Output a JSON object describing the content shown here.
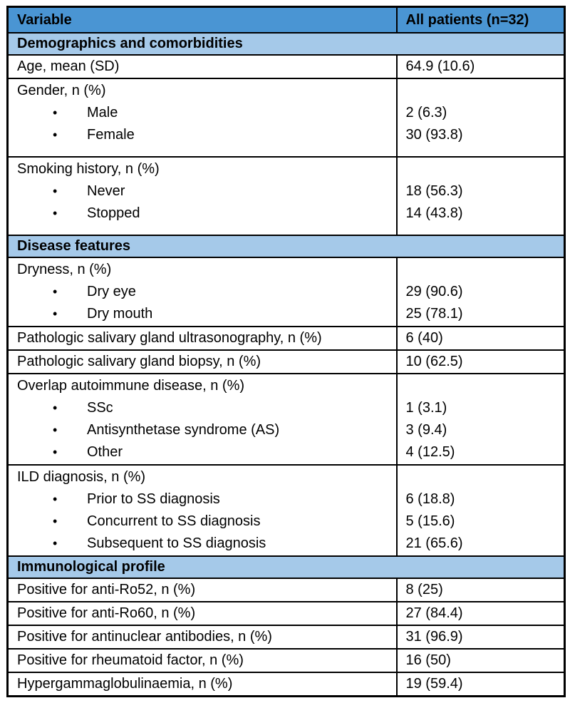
{
  "header": {
    "col1": "Variable",
    "col2": "All patients (n=32)"
  },
  "sections": [
    {
      "title": "Demographics and comorbidities",
      "rows": [
        {
          "label": "Age, mean (SD)",
          "value": "64.9 (10.6)"
        },
        {
          "label": "Gender, n (%)",
          "items": [
            {
              "label": "Male",
              "value": "2 (6.3)"
            },
            {
              "label": "Female",
              "value": "30 (93.8)"
            }
          ]
        },
        {
          "label": "Smoking history, n (%)",
          "items": [
            {
              "label": "Never",
              "value": "18 (56.3)"
            },
            {
              "label": "Stopped",
              "value": "14 (43.8)"
            }
          ]
        }
      ]
    },
    {
      "title": "Disease features",
      "rows": [
        {
          "label": "Dryness, n (%)",
          "items": [
            {
              "label": "Dry eye",
              "value": "29 (90.6)"
            },
            {
              "label": "Dry mouth",
              "value": "25 (78.1)"
            }
          ]
        },
        {
          "label": "Pathologic salivary gland ultrasonography, n (%)",
          "value": "6 (40)"
        },
        {
          "label": "Pathologic salivary gland biopsy, n (%)",
          "value": "10 (62.5)"
        },
        {
          "label": "Overlap autoimmune disease, n (%)",
          "items": [
            {
              "label": "SSc",
              "value": "1 (3.1)"
            },
            {
              "label": "Antisynthetase syndrome (AS)",
              "value": "3 (9.4)"
            },
            {
              "label": "Other",
              "value": "4 (12.5)"
            }
          ]
        },
        {
          "label": "ILD diagnosis, n (%)",
          "items": [
            {
              "label": "Prior to SS diagnosis",
              "value": "6 (18.8)"
            },
            {
              "label": "Concurrent to SS diagnosis",
              "value": "5 (15.6)"
            },
            {
              "label": "Subsequent to SS diagnosis",
              "value": "21 (65.6)"
            }
          ]
        }
      ]
    },
    {
      "title": "Immunological profile",
      "rows": [
        {
          "label": "Positive for anti-Ro52, n (%)",
          "value": "8 (25)"
        },
        {
          "label": "Positive for anti-Ro60, n (%)",
          "value": "27 (84.4)"
        },
        {
          "label": "Positive for antinuclear antibodies, n (%)",
          "value": "31 (96.9)"
        },
        {
          "label": "Positive for rheumatoid factor, n (%)",
          "value": "16 (50)"
        },
        {
          "label": "Hypergammaglobulinaemia, n (%)",
          "value": "19 (59.4)"
        }
      ]
    }
  ],
  "icons": {
    "bullet": "•"
  },
  "colors": {
    "header_bg": "#4a95d3",
    "section_bg": "#a5c9e9",
    "border": "#000000",
    "text": "#000000"
  }
}
